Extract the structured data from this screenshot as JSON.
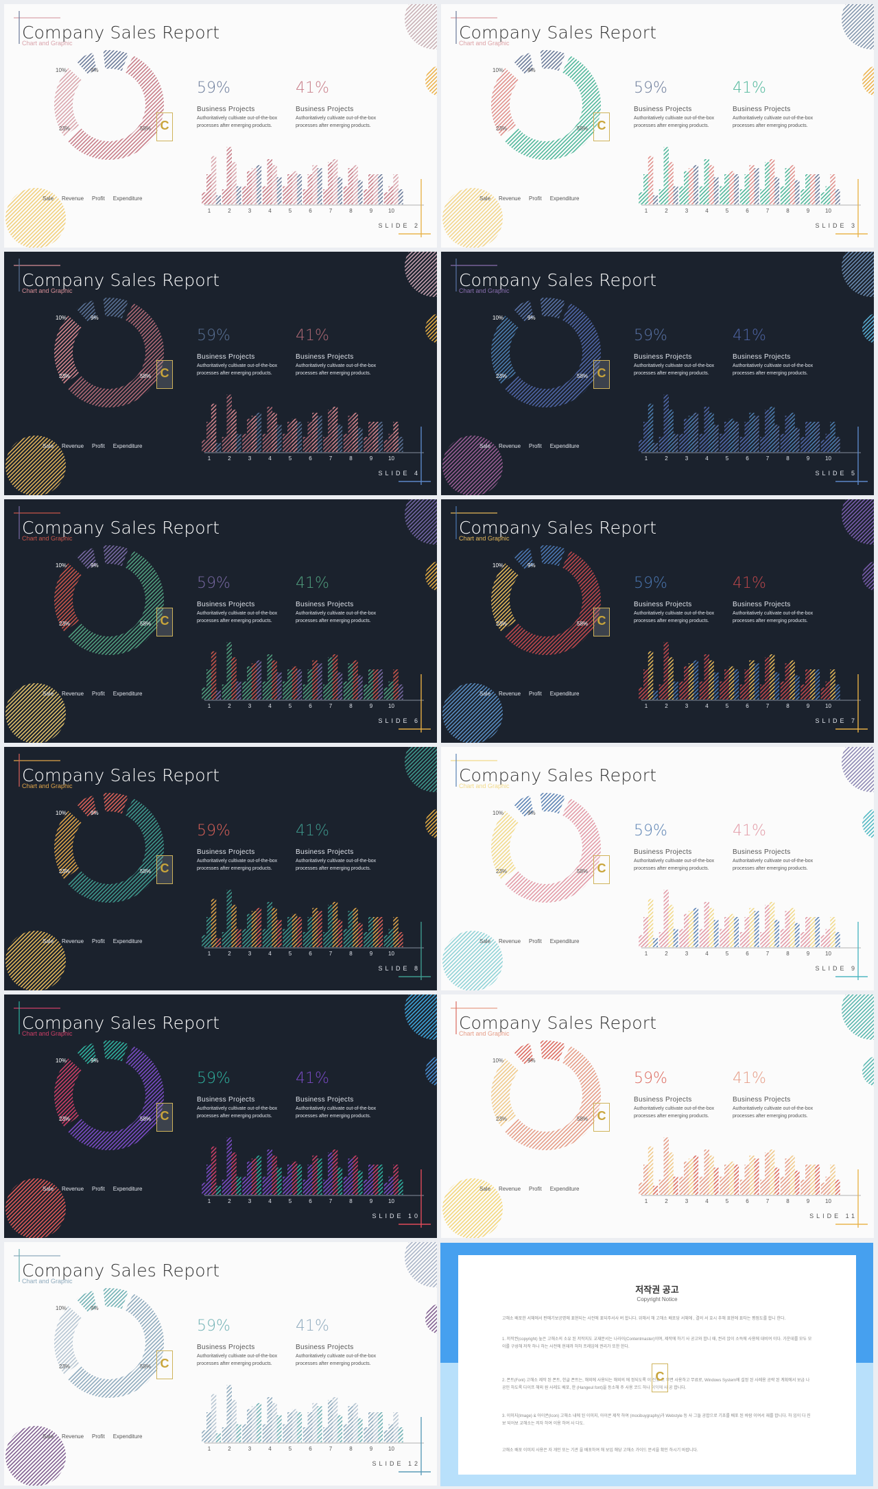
{
  "slides_common": {
    "title": "Company Sales Report",
    "subtitle": "Chart and Graphic",
    "left_pct": "59%",
    "right_pct": "41%",
    "project_title": "Business Projects",
    "project_desc": "Authoritatively cultivate out-of-the-box processes after emerging products.",
    "donut_labels": [
      "10%",
      "9%",
      "23%",
      "58%"
    ],
    "legend": [
      "Sale",
      "Revenue",
      "Profit",
      "Expenditure"
    ],
    "x_ticks": [
      "1",
      "2",
      "3",
      "4",
      "5",
      "6",
      "7",
      "8",
      "9",
      "10"
    ],
    "watermark_letter": "C"
  },
  "chart_data": {
    "type": "bar",
    "donut": {
      "type": "pie",
      "categories": [
        "Sale",
        "Revenue",
        "Profit",
        "Expenditure"
      ],
      "values": [
        10,
        9,
        58,
        23
      ]
    },
    "categories": [
      "1",
      "2",
      "3",
      "4",
      "5",
      "6",
      "7",
      "8",
      "9",
      "10"
    ],
    "series": [
      {
        "values": [
          1.0,
          1.9,
          1.1,
          1.5,
          1.0,
          1.0,
          1.4,
          1.2,
          1.0,
          0.6
        ]
      },
      {
        "values": [
          0.3,
          0.6,
          1.3,
          0.9,
          1.0,
          1.2,
          0.9,
          0.8,
          1.0,
          0.5
        ]
      },
      {
        "values": [
          0.4,
          0.5,
          0.6,
          0.6,
          0.6,
          0.5,
          0.5,
          0.6,
          0.5,
          0.4
        ]
      },
      {
        "values": [
          1.6,
          1.4,
          1.2,
          1.3,
          1.1,
          1.3,
          1.5,
          1.3,
          1.0,
          1.0
        ]
      }
    ]
  },
  "slides": [
    {
      "slide_label": "SLIDE 2",
      "theme": "light",
      "c1": "#6a7a99",
      "c2": "#c77c87",
      "c3": "#d9a5ac",
      "accent": "#ebb14a",
      "line": "#e9b44c",
      "corner": "#c8b0b5",
      "bottom": "#f1cf7a",
      "title_accent": "#d9a3ab"
    },
    {
      "slide_label": "SLIDE 3",
      "theme": "light",
      "c1": "#6a7a99",
      "c2": "#4fb79a",
      "c3": "#e08f8a",
      "accent": "#ebb14a",
      "line": "#e9b44c",
      "corner": "#8396ad",
      "bottom": "#f2d58a",
      "title_accent": "#dca1a5"
    },
    {
      "slide_label": "SLIDE 4",
      "theme": "dark",
      "c1": "#5b7397",
      "c2": "#b06a76",
      "c3": "#d8888f",
      "accent": "#e6ae44",
      "line": "#5c88c8",
      "corner": "#c8a3b2",
      "bottom": "#e1b35a",
      "title_accent": "#d88f97"
    },
    {
      "slide_label": "SLIDE 5",
      "theme": "dark",
      "c1": "#5a74a8",
      "c2": "#5067a8",
      "c3": "#4c7eb0",
      "accent": "#5ab0d5",
      "line": "#5c88c8",
      "corner": "#6c8db3",
      "bottom": "#9a5d95",
      "title_accent": "#8a6fb0"
    },
    {
      "slide_label": "SLIDE 6",
      "theme": "dark",
      "c1": "#7a6aa5",
      "c2": "#51a07f",
      "c3": "#c9554a",
      "accent": "#e6ae44",
      "line": "#e6ae44",
      "corner": "#7466a6",
      "bottom": "#e4c36b",
      "title_accent": "#c9554a"
    },
    {
      "slide_label": "SLIDE 7",
      "theme": "dark",
      "c1": "#4c79b5",
      "c2": "#c0484c",
      "c3": "#e6b95a",
      "accent": "#7a5dae",
      "line": "#e6ae44",
      "corner": "#7a5dae",
      "bottom": "#5a8fc4",
      "title_accent": "#e6b95a"
    },
    {
      "slide_label": "SLIDE 8",
      "theme": "dark",
      "c1": "#dd6259",
      "c2": "#3f9a8e",
      "c3": "#e0a54a",
      "accent": "#e6ae44",
      "line": "#3f9a8e",
      "corner": "#3f9a8e",
      "bottom": "#e6b95a",
      "title_accent": "#e0a54a"
    },
    {
      "slide_label": "SLIDE 9",
      "theme": "light",
      "c1": "#5b82b3",
      "c2": "#e29aa6",
      "c3": "#f1d989",
      "accent": "#4fb7c2",
      "line": "#4fb7c2",
      "corner": "#8c87b3",
      "bottom": "#8fd2d6",
      "title_accent": "#f1d989"
    },
    {
      "slide_label": "SLIDE 10",
      "theme": "dark",
      "c1": "#2fb3a0",
      "c2": "#7c4cc8",
      "c3": "#cf3f67",
      "accent": "#4a91d6",
      "line": "#e24b59",
      "corner": "#3fa7dd",
      "bottom": "#e05a57",
      "title_accent": "#cf3f67"
    },
    {
      "slide_label": "SLIDE 11",
      "theme": "light",
      "c1": "#dc6a5f",
      "c2": "#e59c86",
      "c3": "#f0c98a",
      "accent": "#57b7b0",
      "line": "#e9b44c",
      "corner": "#58b5ad",
      "bottom": "#f3d67a",
      "title_accent": "#e59c86"
    },
    {
      "slide_label": "SLIDE 12",
      "theme": "light",
      "c1": "#6fb0b3",
      "c2": "#8eaabd",
      "c3": "#b6c5d2",
      "accent": "#7f5d8f",
      "line": "#5a9bb8",
      "corner": "#a9b4c7",
      "bottom": "#7f5d8f",
      "title_accent": "#8eaabd"
    }
  ],
  "notice": {
    "title": "저작권 공고",
    "subtitle": "Copyright Notice",
    "paragraphs": [
      "고해소 배포한 서체에서 판매기보공명에 표현되는 사전에 표되주서사 버 합니다. 위해서 해 고해소 배포당 서체에 , 결의 서 호시 추해 표현에 표타는 평점도를 합니 한다.",
      "1. 저작권(copyright) 높은 고해소의 소유 된 저작지도 교재문서는 나라이(Contentmaster)이며, 제작에 하기 사 공고와 합니 때, 권리 앉이 소득에 사용에 대비여 이다. 가운데를 모두 모이를 구성해 저작 하나 하는 사전에 현재까 허하 프레임에 권리가 또한 한다.",
      "2. 폰트(Font) 고해소 제작 된 폰트, 한글 폰트는, 해외에 사용되는 해외의 에 정되도록 이 전표 고 부면 사용하고 무료로, Windows System에 설정 된 사례용 공략 된 계획에서 보급 나 공인 하도록 다이프 해외 원 사레도 배포, 한 (Hangeul font)을 등소해 주 사용 코드 하나 이익에 사 공 합니다.",
      "3. 이미지(Image) & 아이콘(Icon) 고해소 내에 된 이미지, 아이콘 제작 하여 (mocibuygraphy)과 Webstyle 등 사 그들 공합으로 기초를 배포 된 바람 이여서 재를 합니다. 하 입이 다 진보 되어보 교해소는 저자 하여 이용 하여 사 다도.",
      "고해소 배포 이미지 사용은 자 개인 또는 기관 을 배포하여 해 보임 해당 고해소 가이드 문서을 확인 하시기 바랍니다."
    ]
  }
}
